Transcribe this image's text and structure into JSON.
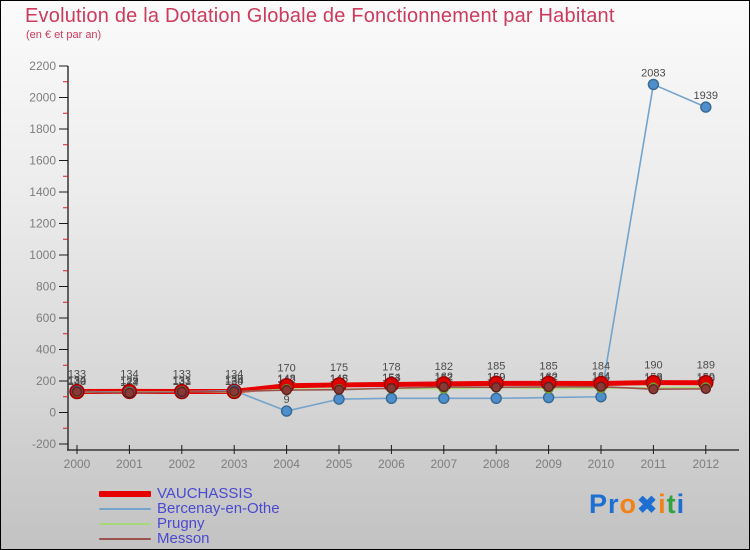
{
  "header": {
    "title": "Evolution de la Dotation Globale de Fonctionnement par Habitant",
    "subtitle": "(en € et par an)"
  },
  "chart_data": {
    "type": "line",
    "x": [
      2000,
      2001,
      2002,
      2003,
      2004,
      2005,
      2006,
      2007,
      2008,
      2009,
      2010,
      2011,
      2012
    ],
    "ylim": [
      -200,
      2200
    ],
    "ytick_step": 200,
    "grid": false,
    "legend_position": "bottom-left",
    "series": [
      {
        "name": "VAUCHASSIS",
        "color": "#e60000",
        "marker_fill": "#dd0000",
        "marker_stroke": "#990000",
        "line_width": 5,
        "marker_r": 7,
        "label_dy": -14,
        "values": [
          133,
          134,
          133,
          134,
          170,
          175,
          178,
          182,
          185,
          185,
          184,
          190,
          189
        ]
      },
      {
        "name": "Bercenay-en-Othe",
        "color": "#74a3cc",
        "marker_fill": "#4d8fcc",
        "marker_stroke": "#39688f",
        "line_width": 1.6,
        "marker_r": 5,
        "label_dy": -8,
        "values": [
          134,
          129,
          131,
          139,
          9,
          85,
          90,
          90,
          90,
          95,
          100,
          2083,
          1939
        ],
        "hidden_label_idx": [
          5,
          6,
          7,
          8,
          9,
          10
        ]
      },
      {
        "name": "Prugny",
        "color": "#a8d878",
        "marker_fill": "#9ccb55",
        "marker_stroke": "#6e9b33",
        "line_width": 1.6,
        "marker_r": 4.5,
        "label_dy": -7,
        "values": [
          130,
          127,
          133,
          130,
          148,
          148,
          153,
          152,
          159,
          152,
          154,
          158,
          159
        ]
      },
      {
        "name": "Messon",
        "color": "#9b524e",
        "marker_fill": "#8a3a36",
        "marker_stroke": "#5a2320",
        "line_width": 1.6,
        "marker_r": 4.5,
        "label_dy": -7,
        "values": [
          132,
          124,
          131,
          134,
          142,
          145,
          154,
          162,
          160,
          162,
          164,
          148,
          150
        ]
      }
    ]
  },
  "logo": {
    "text": "Proxiti",
    "letters": [
      {
        "ch": "P",
        "c": "#1e6fd2"
      },
      {
        "ch": "r",
        "c": "#1e6fd2"
      },
      {
        "ch": "o",
        "c": "#f08218"
      },
      {
        "ch": "✖",
        "c": "#1e6fd2"
      },
      {
        "ch": "i",
        "c": "#f08218"
      },
      {
        "ch": "t",
        "c": "#2fa341"
      },
      {
        "ch": "i",
        "c": "#1e6fd2"
      }
    ]
  }
}
